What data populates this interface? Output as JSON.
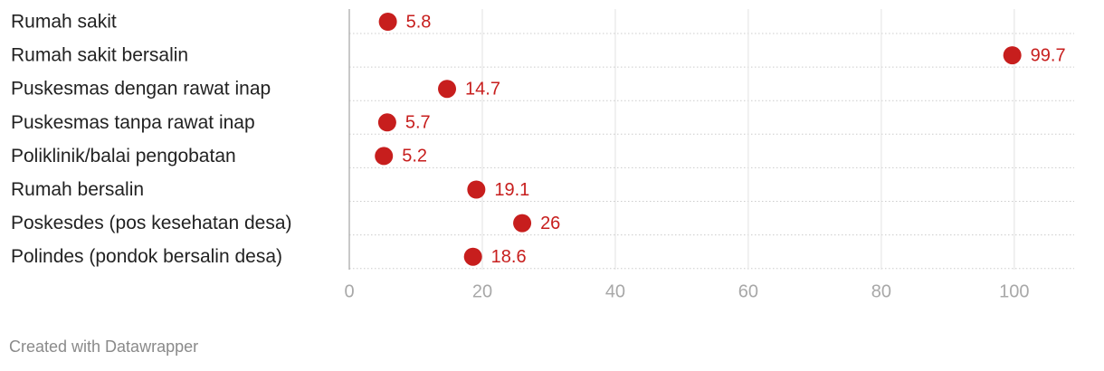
{
  "chart_data": {
    "type": "dot",
    "categories": [
      "Rumah sakit",
      "Rumah sakit bersalin",
      "Puskesmas dengan rawat inap",
      "Puskesmas tanpa rawat inap",
      "Poliklinik/balai pengobatan",
      "Rumah bersalin",
      "Poskesdes (pos kesehatan desa)",
      "Polindes (pondok bersalin desa)"
    ],
    "values": [
      5.8,
      99.7,
      14.7,
      5.7,
      5.2,
      19.1,
      26,
      18.6
    ],
    "color": "#c71e1d",
    "xlim": [
      0,
      109
    ],
    "xticks": [
      0,
      20,
      40,
      60,
      80,
      100
    ],
    "grid": true,
    "credit": "Created with Datawrapper"
  }
}
